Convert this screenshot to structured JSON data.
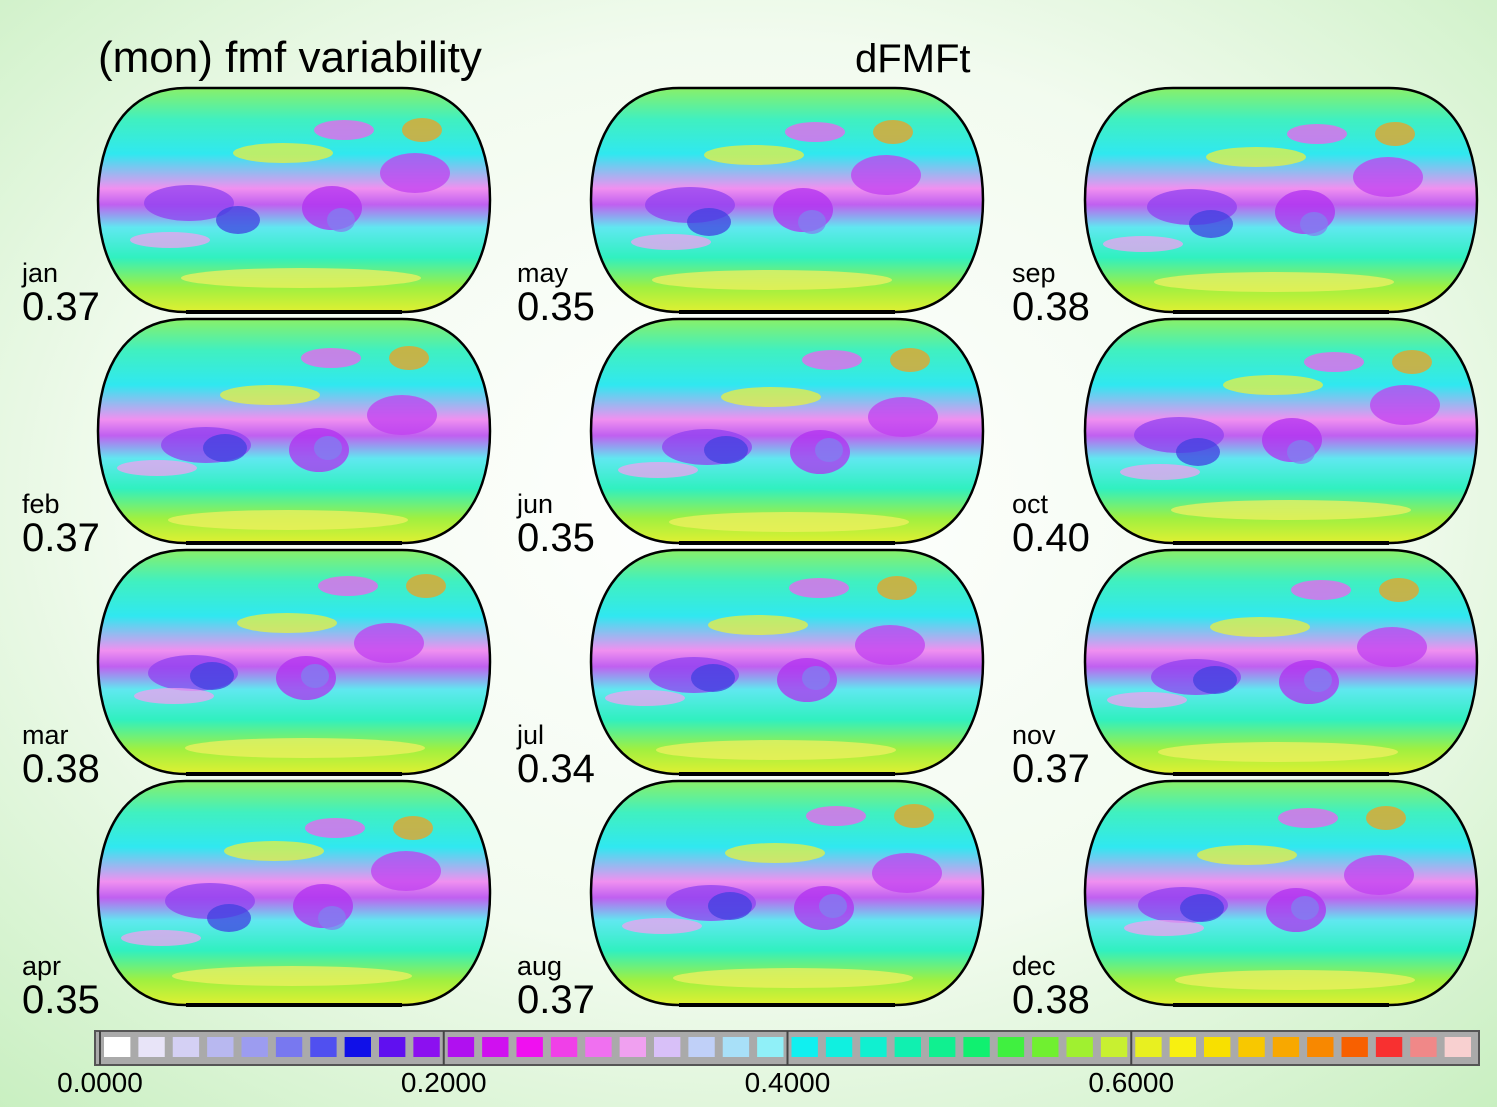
{
  "title": "(mon) fmf variability",
  "subtitle": "dFMFt",
  "panels": [
    {
      "month": "jan",
      "value": 0.37
    },
    {
      "month": "feb",
      "value": 0.37
    },
    {
      "month": "mar",
      "value": 0.38
    },
    {
      "month": "apr",
      "value": 0.35
    },
    {
      "month": "may",
      "value": 0.35
    },
    {
      "month": "jun",
      "value": 0.35
    },
    {
      "month": "jul",
      "value": 0.34
    },
    {
      "month": "aug",
      "value": 0.37
    },
    {
      "month": "sep",
      "value": 0.38
    },
    {
      "month": "oct",
      "value": {
        "value": 0.4,
        "label": "0.40"
      }
    },
    {
      "month": "nov",
      "value": 0.37
    },
    {
      "month": "dec",
      "value": 0.38
    }
  ],
  "colorbar": {
    "range": [
      0,
      0.8
    ],
    "ticks": [
      {
        "value": 0,
        "label": "0.0000"
      },
      {
        "value": 0.2,
        "label": "0.2000"
      },
      {
        "value": 0.4,
        "label": "0.4000"
      },
      {
        "value": 0.6,
        "label": "0.6000"
      }
    ],
    "colors": [
      "#ffffff",
      "#e8e4f8",
      "#d4d0f4",
      "#b8b8f0",
      "#9c9cf0",
      "#7878f0",
      "#5050f0",
      "#1010e8",
      "#6010f0",
      "#8c10f0",
      "#b010f0",
      "#d010f0",
      "#f010f0",
      "#f040e8",
      "#f070f0",
      "#f0a0f0",
      "#d8c0f8",
      "#c0d0f8",
      "#a8e0f8",
      "#90f0f8",
      "#10f0f0",
      "#10f0e0",
      "#10f0d0",
      "#10f0b0",
      "#10f090",
      "#10f070",
      "#40f040",
      "#70f030",
      "#a0f030",
      "#c8f030",
      "#e8f020",
      "#f8f010",
      "#f8e000",
      "#f8c800",
      "#f8a800",
      "#f88800",
      "#f86000",
      "#f83030",
      "#f08888",
      "#f8d0d0"
    ]
  }
}
